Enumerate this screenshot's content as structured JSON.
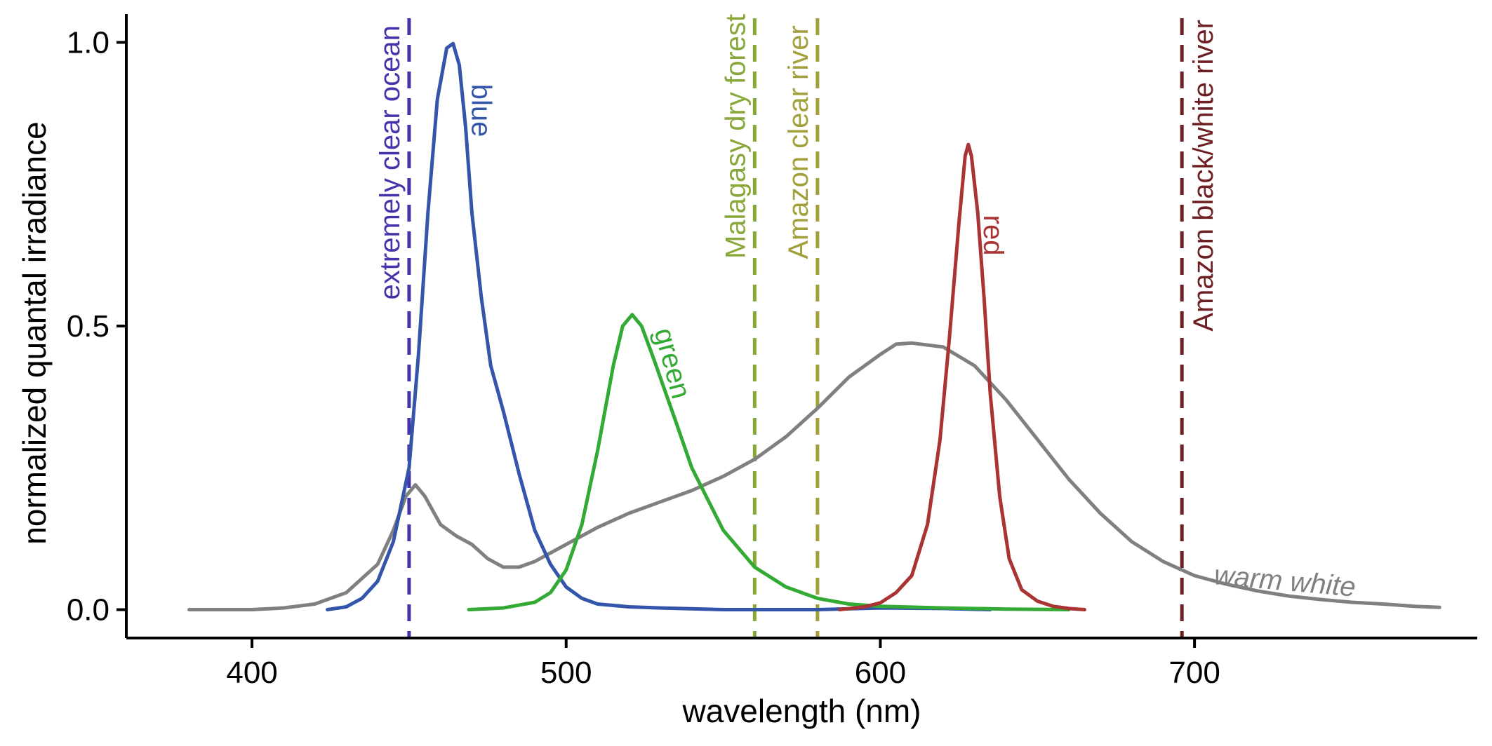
{
  "chart_data": {
    "type": "line",
    "xlabel": "wavelength (nm)",
    "ylabel": "normalized quantal irradiance",
    "xlim": [
      360,
      790
    ],
    "ylim": [
      -0.05,
      1.05
    ],
    "x_ticks": [
      400,
      500,
      600,
      700
    ],
    "y_ticks": [
      {
        "value": 0.0,
        "label": "0.0"
      },
      {
        "value": 0.5,
        "label": "0.5"
      },
      {
        "value": 1.0,
        "label": "1.0"
      }
    ],
    "grid": false,
    "reference_lines": [
      {
        "x": 450,
        "label": "extremely clear ocean",
        "color": "#4433aa",
        "label_side": "left",
        "label_top_y": 1.03
      },
      {
        "x": 560,
        "label": "Malagasy dry forest",
        "color": "#88a83a",
        "label_side": "left",
        "label_top_y": 1.05
      },
      {
        "x": 580,
        "label": "Amazon clear river",
        "color": "#a2a03a",
        "label_side": "left",
        "label_top_y": 1.03
      },
      {
        "x": 696,
        "label": "Amazon black/white river",
        "color": "#6e1f22",
        "label_side": "right",
        "label_top_y": 1.04
      }
    ],
    "series": [
      {
        "name": "warm white",
        "color": "#808080",
        "label_x": 706,
        "label_y": 0.045,
        "label_rotate": 5,
        "label_italic": true,
        "points": [
          [
            380,
            0.0
          ],
          [
            400,
            0.0
          ],
          [
            410,
            0.003
          ],
          [
            420,
            0.01
          ],
          [
            430,
            0.03
          ],
          [
            440,
            0.08
          ],
          [
            445,
            0.14
          ],
          [
            449,
            0.2
          ],
          [
            452,
            0.22
          ],
          [
            455,
            0.2
          ],
          [
            460,
            0.15
          ],
          [
            465,
            0.13
          ],
          [
            470,
            0.115
          ],
          [
            475,
            0.09
          ],
          [
            480,
            0.075
          ],
          [
            485,
            0.075
          ],
          [
            490,
            0.085
          ],
          [
            500,
            0.115
          ],
          [
            510,
            0.145
          ],
          [
            520,
            0.17
          ],
          [
            530,
            0.19
          ],
          [
            540,
            0.21
          ],
          [
            550,
            0.235
          ],
          [
            560,
            0.265
          ],
          [
            570,
            0.305
          ],
          [
            580,
            0.355
          ],
          [
            590,
            0.41
          ],
          [
            600,
            0.45
          ],
          [
            605,
            0.468
          ],
          [
            610,
            0.47
          ],
          [
            620,
            0.463
          ],
          [
            630,
            0.43
          ],
          [
            640,
            0.37
          ],
          [
            650,
            0.3
          ],
          [
            660,
            0.23
          ],
          [
            670,
            0.17
          ],
          [
            680,
            0.12
          ],
          [
            690,
            0.085
          ],
          [
            700,
            0.06
          ],
          [
            710,
            0.045
          ],
          [
            720,
            0.033
          ],
          [
            730,
            0.024
          ],
          [
            740,
            0.018
          ],
          [
            750,
            0.013
          ],
          [
            760,
            0.01
          ],
          [
            770,
            0.006
          ],
          [
            778,
            0.004
          ]
        ]
      },
      {
        "name": "blue",
        "color": "#3356aa",
        "label_x": 470,
        "label_y": 0.88,
        "label_rotate": 90,
        "label_italic": false,
        "points": [
          [
            424,
            0.0
          ],
          [
            430,
            0.005
          ],
          [
            435,
            0.02
          ],
          [
            440,
            0.05
          ],
          [
            445,
            0.12
          ],
          [
            450,
            0.25
          ],
          [
            453,
            0.45
          ],
          [
            456,
            0.7
          ],
          [
            459,
            0.9
          ],
          [
            462,
            0.99
          ],
          [
            464,
            0.998
          ],
          [
            466,
            0.96
          ],
          [
            468,
            0.85
          ],
          [
            470,
            0.7
          ],
          [
            473,
            0.55
          ],
          [
            476,
            0.43
          ],
          [
            480,
            0.35
          ],
          [
            485,
            0.24
          ],
          [
            490,
            0.14
          ],
          [
            495,
            0.08
          ],
          [
            500,
            0.04
          ],
          [
            505,
            0.02
          ],
          [
            510,
            0.01
          ],
          [
            520,
            0.005
          ],
          [
            530,
            0.003
          ],
          [
            550,
            0.0
          ],
          [
            580,
            0.0
          ],
          [
            600,
            0.003
          ],
          [
            620,
            0.002
          ],
          [
            635,
            0.0
          ]
        ]
      },
      {
        "name": "green",
        "color": "#33aa33",
        "label_x": 531,
        "label_y": 0.43,
        "label_rotate": 75,
        "label_italic": false,
        "points": [
          [
            469,
            0.0
          ],
          [
            480,
            0.003
          ],
          [
            490,
            0.013
          ],
          [
            495,
            0.03
          ],
          [
            500,
            0.07
          ],
          [
            505,
            0.15
          ],
          [
            510,
            0.28
          ],
          [
            515,
            0.43
          ],
          [
            518,
            0.5
          ],
          [
            521,
            0.52
          ],
          [
            524,
            0.5
          ],
          [
            528,
            0.44
          ],
          [
            535,
            0.33
          ],
          [
            540,
            0.25
          ],
          [
            550,
            0.14
          ],
          [
            560,
            0.075
          ],
          [
            570,
            0.04
          ],
          [
            580,
            0.02
          ],
          [
            590,
            0.01
          ],
          [
            600,
            0.006
          ],
          [
            620,
            0.003
          ],
          [
            640,
            0.001
          ],
          [
            660,
            0.0
          ]
        ]
      },
      {
        "name": "red",
        "color": "#aa3333",
        "label_x": 633,
        "label_y": 0.66,
        "label_rotate": 90,
        "label_italic": false,
        "points": [
          [
            587,
            0.0
          ],
          [
            595,
            0.005
          ],
          [
            600,
            0.012
          ],
          [
            605,
            0.03
          ],
          [
            610,
            0.06
          ],
          [
            615,
            0.15
          ],
          [
            619,
            0.3
          ],
          [
            622,
            0.48
          ],
          [
            625,
            0.68
          ],
          [
            627,
            0.8
          ],
          [
            628,
            0.82
          ],
          [
            629,
            0.8
          ],
          [
            631,
            0.7
          ],
          [
            633,
            0.55
          ],
          [
            635,
            0.38
          ],
          [
            638,
            0.2
          ],
          [
            641,
            0.09
          ],
          [
            645,
            0.035
          ],
          [
            650,
            0.015
          ],
          [
            655,
            0.006
          ],
          [
            660,
            0.002
          ],
          [
            665,
            0.0
          ]
        ]
      }
    ]
  }
}
